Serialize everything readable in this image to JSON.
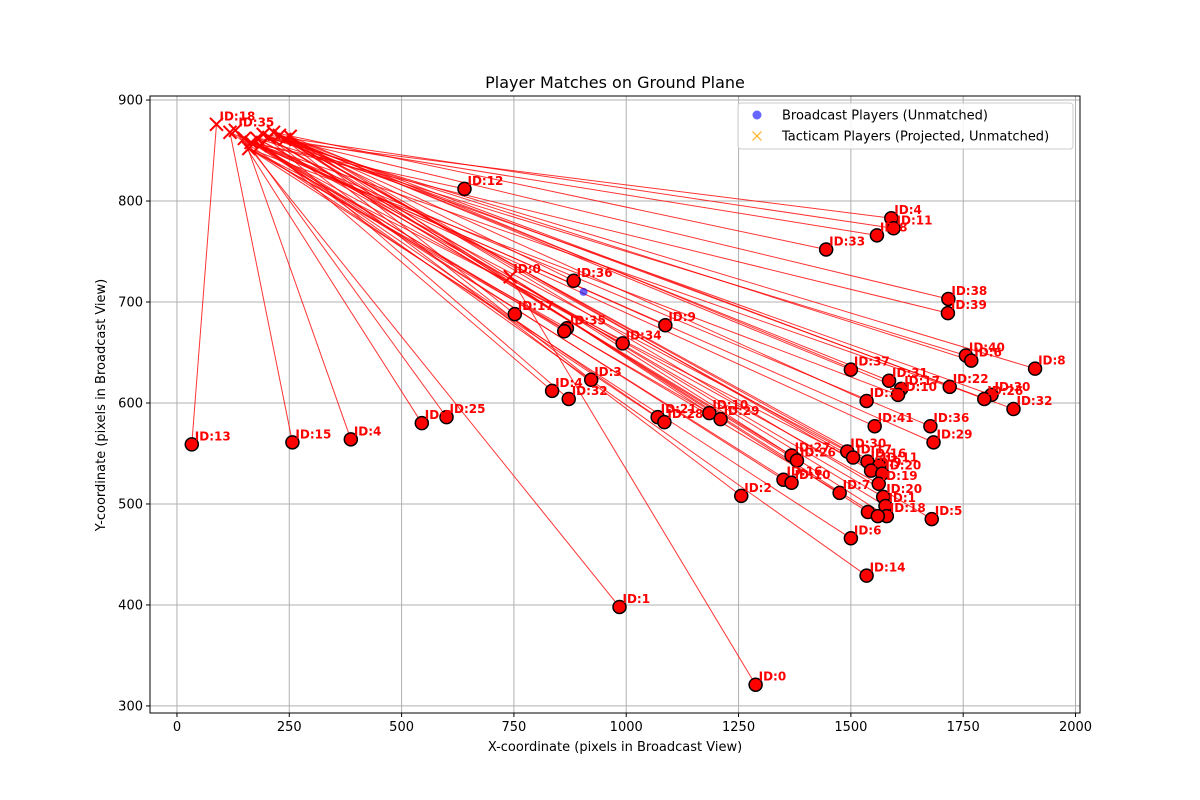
{
  "chart_data": {
    "type": "scatter",
    "title": "Player Matches on Ground Plane",
    "xlabel": "X-coordinate (pixels in Broadcast View)",
    "ylabel": "Y-coordinate (pixels in Broadcast View)",
    "xlim": [
      -60,
      2010
    ],
    "ylim": [
      293,
      904
    ],
    "xticks": [
      0,
      250,
      500,
      750,
      1000,
      1250,
      1500,
      1750,
      2000
    ],
    "yticks": [
      300,
      400,
      500,
      600,
      700,
      800,
      900
    ],
    "grid": true,
    "legend_position": "top-right",
    "legend": [
      {
        "label": "Broadcast Players (Unmatched)",
        "marker": "circle",
        "color": "#0000ff"
      },
      {
        "label": "Tacticam Players (Projected, Unmatched)",
        "marker": "x",
        "color": "#ffa500"
      }
    ],
    "colors": {
      "matched": "#ff0000",
      "match_line": "#ff0000",
      "unmatched_broadcast": "#0000ff",
      "unmatched_tacticam": "#ffa500"
    },
    "tacticam_matched": [
      {
        "label": "ID:18",
        "x": 88,
        "y": 876
      },
      {
        "label": "ID:0",
        "x": 742,
        "y": 725
      },
      {
        "label": "ID:35",
        "x": 130,
        "y": 870
      },
      {
        "label": "",
        "x": 118,
        "y": 868
      },
      {
        "label": "",
        "x": 150,
        "y": 862
      },
      {
        "label": "",
        "x": 165,
        "y": 858
      },
      {
        "label": "",
        "x": 178,
        "y": 862
      },
      {
        "label": "",
        "x": 192,
        "y": 866
      },
      {
        "label": "",
        "x": 205,
        "y": 863
      },
      {
        "label": "",
        "x": 215,
        "y": 868
      },
      {
        "label": "",
        "x": 228,
        "y": 865
      },
      {
        "label": "",
        "x": 240,
        "y": 861
      },
      {
        "label": "",
        "x": 252,
        "y": 864
      },
      {
        "label": "",
        "x": 160,
        "y": 852
      },
      {
        "label": "",
        "x": 185,
        "y": 855
      }
    ],
    "broadcast_matched": [
      {
        "label": "ID:12",
        "x": 640,
        "y": 812
      },
      {
        "label": "ID:4",
        "x": 1590,
        "y": 783
      },
      {
        "label": "ID:11",
        "x": 1595,
        "y": 773
      },
      {
        "label": "ID:8",
        "x": 1558,
        "y": 766
      },
      {
        "label": "ID:33",
        "x": 1445,
        "y": 752
      },
      {
        "label": "ID:36",
        "x": 883,
        "y": 721
      },
      {
        "label": "ID:38",
        "x": 1717,
        "y": 703
      },
      {
        "label": "ID:39",
        "x": 1716,
        "y": 689
      },
      {
        "label": "ID:17",
        "x": 752,
        "y": 688
      },
      {
        "label": "ID:35",
        "x": 868,
        "y": 674
      },
      {
        "label": "",
        "x": 862,
        "y": 671
      },
      {
        "label": "ID:9",
        "x": 1087,
        "y": 677
      },
      {
        "label": "ID:34",
        "x": 992,
        "y": 659
      },
      {
        "label": "ID:40",
        "x": 1756,
        "y": 647
      },
      {
        "label": "ID:6",
        "x": 1768,
        "y": 642
      },
      {
        "label": "ID:8",
        "x": 1910,
        "y": 634
      },
      {
        "label": "ID:37",
        "x": 1500,
        "y": 633
      },
      {
        "label": "ID:31",
        "x": 1585,
        "y": 622
      },
      {
        "label": "ID:3",
        "x": 922,
        "y": 623
      },
      {
        "label": "ID:17",
        "x": 1612,
        "y": 614
      },
      {
        "label": "ID:10",
        "x": 1605,
        "y": 608
      },
      {
        "label": "ID:22",
        "x": 1720,
        "y": 616
      },
      {
        "label": "ID:4",
        "x": 835,
        "y": 612
      },
      {
        "label": "ID:32",
        "x": 872,
        "y": 604
      },
      {
        "label": "ID:30",
        "x": 1813,
        "y": 608
      },
      {
        "label": "ID:26",
        "x": 1797,
        "y": 604
      },
      {
        "label": "ID:3",
        "x": 1535,
        "y": 602
      },
      {
        "label": "ID:32",
        "x": 1862,
        "y": 594
      },
      {
        "label": "ID:10",
        "x": 1185,
        "y": 590
      },
      {
        "label": "ID:29",
        "x": 1210,
        "y": 584
      },
      {
        "label": "ID:21",
        "x": 1070,
        "y": 586
      },
      {
        "label": "ID:28",
        "x": 1085,
        "y": 581
      },
      {
        "label": "ID:25",
        "x": 600,
        "y": 586
      },
      {
        "label": "ID:2",
        "x": 545,
        "y": 580
      },
      {
        "label": "ID:41",
        "x": 1553,
        "y": 577
      },
      {
        "label": "ID:36",
        "x": 1677,
        "y": 577
      },
      {
        "label": "ID:29",
        "x": 1684,
        "y": 561
      },
      {
        "label": "ID:13",
        "x": 33,
        "y": 559
      },
      {
        "label": "ID:15",
        "x": 257,
        "y": 561
      },
      {
        "label": "ID:4",
        "x": 387,
        "y": 564
      },
      {
        "label": "ID:30",
        "x": 1492,
        "y": 552
      },
      {
        "label": "ID:27",
        "x": 1368,
        "y": 548
      },
      {
        "label": "ID:26",
        "x": 1380,
        "y": 543
      },
      {
        "label": "ID:17",
        "x": 1505,
        "y": 546
      },
      {
        "label": "ID:16",
        "x": 1537,
        "y": 542
      },
      {
        "label": "ID:11",
        "x": 1563,
        "y": 538
      },
      {
        "label": "ID:9",
        "x": 1545,
        "y": 533
      },
      {
        "label": "ID:20",
        "x": 1570,
        "y": 530
      },
      {
        "label": "ID:16",
        "x": 1350,
        "y": 524
      },
      {
        "label": "ID:10",
        "x": 1368,
        "y": 521
      },
      {
        "label": "ID:7",
        "x": 1475,
        "y": 511
      },
      {
        "label": "ID:19",
        "x": 1562,
        "y": 520
      },
      {
        "label": "ID:20",
        "x": 1572,
        "y": 507
      },
      {
        "label": "ID:2",
        "x": 1256,
        "y": 508
      },
      {
        "label": "ID:1",
        "x": 1577,
        "y": 498
      },
      {
        "label": "ID:18",
        "x": 1580,
        "y": 488
      },
      {
        "label": "",
        "x": 1538,
        "y": 492
      },
      {
        "label": "",
        "x": 1560,
        "y": 488
      },
      {
        "label": "ID:5",
        "x": 1680,
        "y": 485
      },
      {
        "label": "ID:6",
        "x": 1500,
        "y": 466
      },
      {
        "label": "ID:14",
        "x": 1535,
        "y": 429
      },
      {
        "label": "ID:1",
        "x": 985,
        "y": 398
      },
      {
        "label": "ID:0",
        "x": 1288,
        "y": 321
      }
    ],
    "broadcast_unmatched": [
      {
        "x": 905,
        "y": 710
      }
    ],
    "tacticam_unmatched": [],
    "matches": [
      [
        0,
        37
      ],
      [
        1,
        55
      ],
      [
        3,
        38
      ],
      [
        4,
        39
      ],
      [
        5,
        0
      ],
      [
        5,
        7
      ],
      [
        6,
        1
      ],
      [
        7,
        2
      ],
      [
        8,
        3
      ],
      [
        9,
        4
      ],
      [
        10,
        5
      ],
      [
        11,
        6
      ],
      [
        12,
        8
      ],
      [
        13,
        9
      ],
      [
        14,
        10
      ],
      [
        4,
        11
      ],
      [
        5,
        12
      ],
      [
        6,
        13
      ],
      [
        7,
        14
      ],
      [
        8,
        15
      ],
      [
        9,
        16
      ],
      [
        10,
        17
      ],
      [
        11,
        18
      ],
      [
        12,
        19
      ],
      [
        13,
        20
      ],
      [
        14,
        21
      ],
      [
        6,
        22
      ],
      [
        7,
        23
      ],
      [
        8,
        24
      ],
      [
        9,
        25
      ],
      [
        10,
        26
      ],
      [
        11,
        27
      ],
      [
        12,
        28
      ],
      [
        13,
        29
      ],
      [
        14,
        30
      ],
      [
        3,
        31
      ],
      [
        4,
        32
      ],
      [
        2,
        33
      ],
      [
        3,
        34
      ],
      [
        4,
        35
      ],
      [
        5,
        36
      ],
      [
        6,
        40
      ],
      [
        7,
        41
      ],
      [
        8,
        42
      ],
      [
        9,
        43
      ],
      [
        10,
        44
      ],
      [
        11,
        45
      ],
      [
        12,
        46
      ],
      [
        13,
        47
      ],
      [
        14,
        48
      ],
      [
        4,
        49
      ],
      [
        5,
        50
      ],
      [
        6,
        51
      ],
      [
        7,
        52
      ],
      [
        8,
        53
      ],
      [
        9,
        54
      ],
      [
        10,
        56
      ],
      [
        11,
        57
      ],
      [
        12,
        58
      ],
      [
        13,
        59
      ],
      [
        14,
        60
      ],
      [
        2,
        61
      ],
      [
        1,
        62
      ]
    ]
  }
}
